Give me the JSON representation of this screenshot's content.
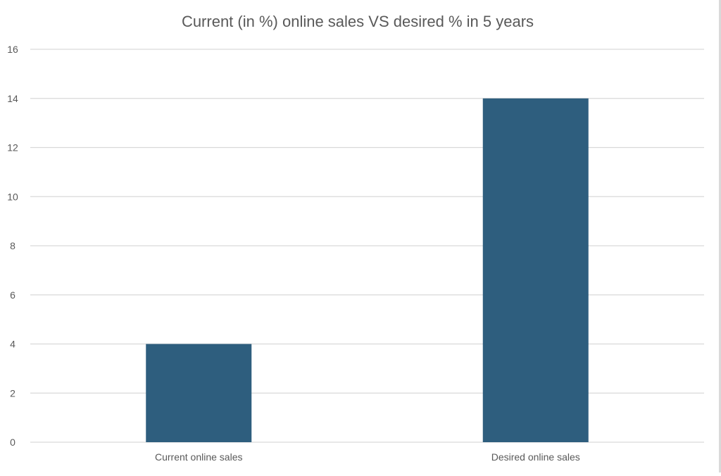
{
  "chart_data": {
    "type": "bar",
    "title": "Current (in %) online sales VS desired % in 5 years",
    "categories": [
      "Current online sales",
      "Desired online sales"
    ],
    "values": [
      4,
      14
    ],
    "ylim": [
      0,
      16
    ],
    "yticks": [
      0,
      2,
      4,
      6,
      8,
      10,
      12,
      14,
      16
    ],
    "xlabel": "",
    "ylabel": "",
    "grid": true,
    "legend": "none",
    "colors": {
      "bar": "#2e5e7e",
      "grid": "#d9d9d9",
      "tick_text": "#595959",
      "title_text": "#595959"
    }
  }
}
